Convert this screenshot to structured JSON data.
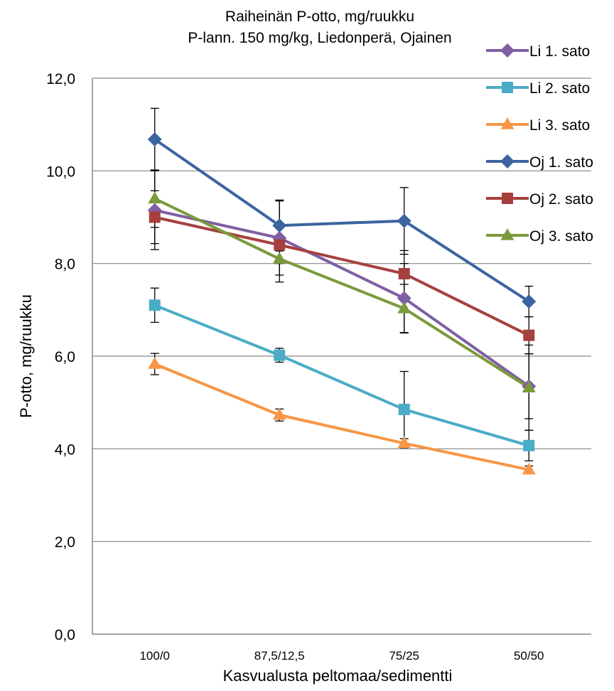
{
  "chart_data": {
    "type": "line",
    "title_lines": [
      "Raiheinän P-otto, mg/ruukku",
      "P-lann. 150 mg/kg, Liedonperä, Ojainen"
    ],
    "xlabel": "Kasvualusta peltomaa/sedimentti",
    "ylabel": "P-otto, mg/ruukku",
    "ylim": [
      0,
      12
    ],
    "ytick_values": [
      0,
      2,
      4,
      6,
      8,
      10,
      12
    ],
    "ytick_labels": [
      "0,0",
      "2,0",
      "4,0",
      "6,0",
      "8,0",
      "10,0",
      "12,0"
    ],
    "categories": [
      "100/0",
      "87,5/12,5",
      "75/25",
      "50/50"
    ],
    "grid": "horizontal",
    "legend": "top-right",
    "series": [
      {
        "name": "Li 1. sato",
        "color": "#7f5fa4",
        "marker": "diamond",
        "values": [
          9.15,
          8.55,
          7.25,
          5.35
        ],
        "errors": [
          0.85,
          0.8,
          0.75,
          0.7
        ]
      },
      {
        "name": "Li 2. sato",
        "color": "#4bacc6",
        "marker": "square",
        "values": [
          7.1,
          6.02,
          4.85,
          4.07
        ],
        "errors": [
          0.37,
          0.15,
          0.82,
          0.33
        ]
      },
      {
        "name": "Li 3. sato",
        "color": "#f79646",
        "marker": "triangle",
        "values": [
          5.83,
          4.73,
          4.12,
          3.55
        ],
        "errors": [
          0.23,
          0.13,
          0.1,
          0.08
        ]
      },
      {
        "name": "Oj 1. sato",
        "color": "#3c64a0",
        "marker": "diamond",
        "values": [
          10.68,
          8.82,
          8.92,
          7.18
        ],
        "errors": [
          0.67,
          0.55,
          0.72,
          0.33
        ]
      },
      {
        "name": "Oj 2. sato",
        "color": "#a5403e",
        "marker": "square",
        "values": [
          9.0,
          8.4,
          7.78,
          6.45
        ],
        "errors": [
          0.57,
          0.4,
          0.5,
          0.4
        ]
      },
      {
        "name": "Oj 3. sato",
        "color": "#7b9a3c",
        "marker": "triangle",
        "values": [
          9.4,
          8.1,
          7.03,
          5.32
        ],
        "errors": [
          0.62,
          0.5,
          0.52,
          0.92
        ]
      }
    ]
  }
}
